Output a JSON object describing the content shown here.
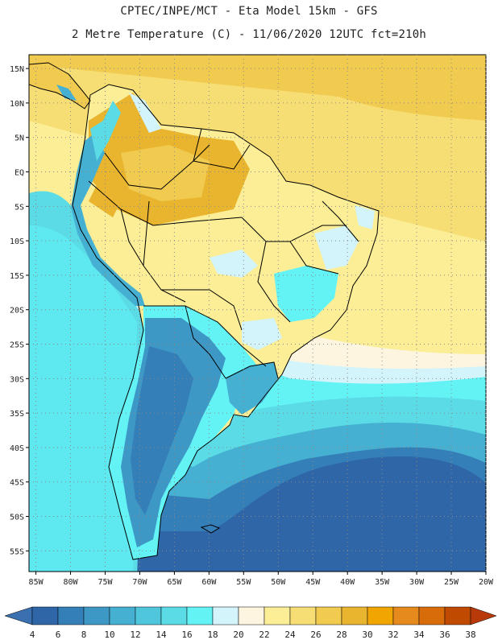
{
  "header": {
    "line1": "CPTEC/INPE/MCT -  Eta Model 15km - GFS",
    "line2": "2 Metre Temperature (C) - 11/06/2020 12UTC fct=210h"
  },
  "map": {
    "lat_labels": [
      "15N",
      "10N",
      "5N",
      "EQ",
      "5S",
      "10S",
      "15S",
      "20S",
      "25S",
      "30S",
      "35S",
      "40S",
      "45S",
      "50S",
      "55S"
    ],
    "lat_values": [
      15,
      10,
      5,
      0,
      -5,
      -10,
      -15,
      -20,
      -25,
      -30,
      -35,
      -40,
      -45,
      -50,
      -55
    ],
    "lon_labels": [
      "85W",
      "80W",
      "75W",
      "70W",
      "65W",
      "60W",
      "55W",
      "50W",
      "45W",
      "40W",
      "35W",
      "30W",
      "25W",
      "20W"
    ],
    "lon_values": [
      -85,
      -80,
      -75,
      -70,
      -65,
      -60,
      -55,
      -50,
      -45,
      -40,
      -35,
      -30,
      -25,
      -20
    ],
    "lat_range": [
      -58,
      17
    ],
    "lon_range": [
      -86,
      -20
    ]
  },
  "colorbar": {
    "labels": [
      "4",
      "6",
      "8",
      "10",
      "12",
      "14",
      "16",
      "18",
      "20",
      "22",
      "24",
      "26",
      "28",
      "30",
      "32",
      "34",
      "36",
      "38"
    ],
    "colors": [
      "#2e66a8",
      "#357fb9",
      "#3d98c6",
      "#46b0d2",
      "#4fc6dc",
      "#5adbe6",
      "#63f3f5",
      "#d2f4fa",
      "#fdf5df",
      "#fbee96",
      "#f7de74",
      "#f1cb50",
      "#e9b42e",
      "#f0a500",
      "#e68a1e",
      "#d86c0a",
      "#c04a00"
    ],
    "end_low": "#3a6fb0",
    "end_high": "#b83a0a"
  }
}
